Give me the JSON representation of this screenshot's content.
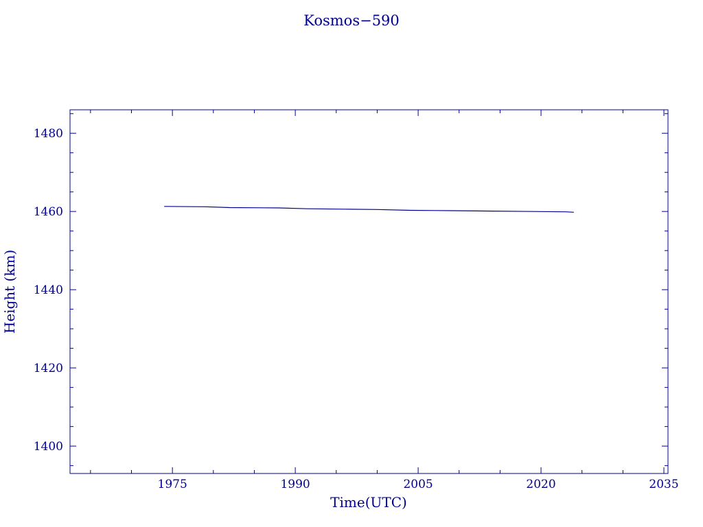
{
  "chart_data": {
    "type": "line",
    "title": "Kosmos−590",
    "xlabel": "Time(UTC)",
    "ylabel": "Height (km)",
    "xlim": [
      1962.5,
      2035.5
    ],
    "ylim": [
      1393,
      1486
    ],
    "x_major_ticks": [
      1975,
      1990,
      2005,
      2020,
      2035
    ],
    "x_tick_labels": [
      "1975",
      "1990",
      "2005",
      "2020",
      "2035"
    ],
    "y_major_ticks": [
      1400,
      1420,
      1440,
      1460,
      1480
    ],
    "y_tick_labels": [
      "1400",
      "1420",
      "1440",
      "1460",
      "1480"
    ],
    "grid": false,
    "series": [
      {
        "color": "#00008b",
        "x": [
          1974.0,
          1979.0,
          1982.0,
          1988.0,
          1991.5,
          1996.0,
          2000.0,
          2004.0,
          2009.0,
          2014.0,
          2019.0,
          2023.0,
          2024.0
        ],
        "y": [
          1461.3,
          1461.2,
          1461.0,
          1460.9,
          1460.7,
          1460.6,
          1460.5,
          1460.3,
          1460.2,
          1460.1,
          1460.0,
          1459.9,
          1459.8
        ]
      }
    ]
  }
}
